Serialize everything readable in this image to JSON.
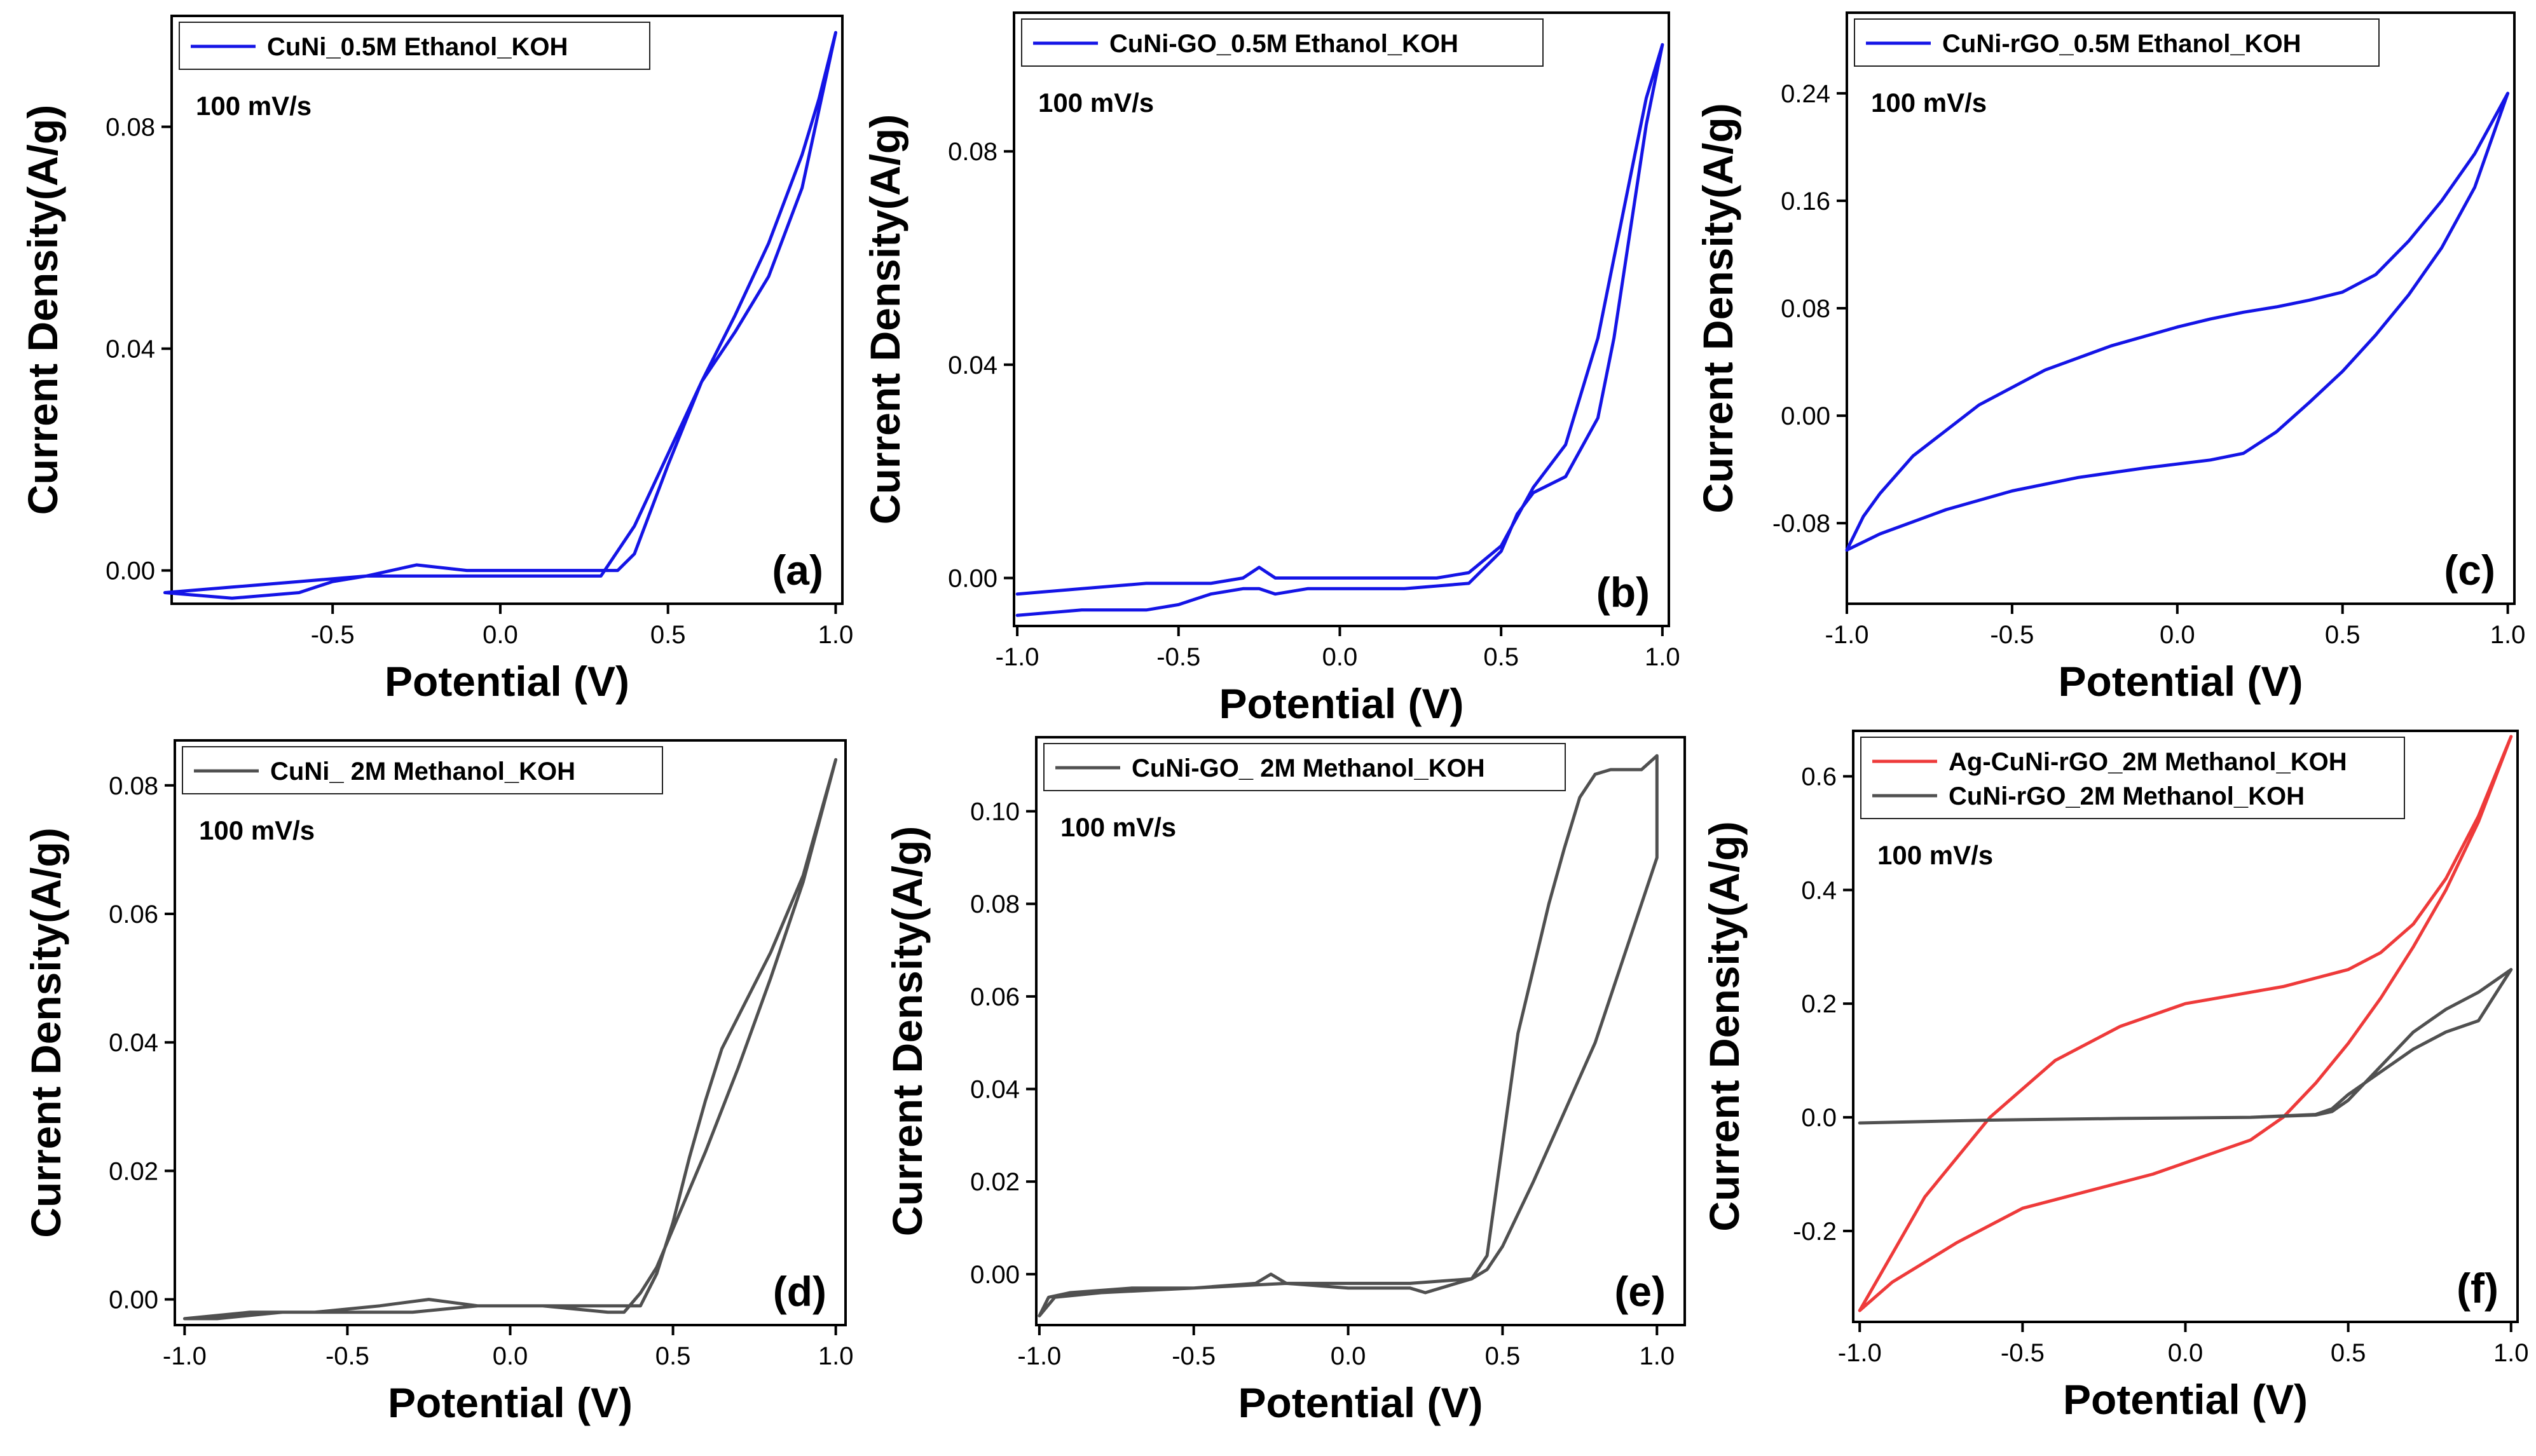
{
  "chart_data": [
    {
      "type": "line",
      "panel_label": "(a)",
      "annotation": "100 mV/s",
      "xlabel": "Potential (V)",
      "ylabel": "Current Density(A/g)",
      "xlim": [
        -0.98,
        1.02
      ],
      "ylim": [
        -0.006,
        0.1
      ],
      "xticks": [
        -0.5,
        0.0,
        0.5,
        1.0
      ],
      "yticks": [
        0.0,
        0.04,
        0.08
      ],
      "tick_decimals": 2,
      "legend_position": "top-left",
      "series": [
        {
          "name": "CuNi_0.5M Ethanol_KOH",
          "color": "#1414e6",
          "x": [
            -1.0,
            -0.8,
            -0.6,
            -0.4,
            -0.25,
            -0.1,
            0.1,
            0.25,
            0.35,
            0.4,
            0.5,
            0.6,
            0.7,
            0.8,
            0.9,
            0.95,
            1.0,
            0.9,
            0.8,
            0.7,
            0.6,
            0.5,
            0.4,
            0.3,
            0.2,
            0.0,
            -0.2,
            -0.4,
            -0.5,
            -0.6,
            -0.8,
            -1.0
          ],
          "y": [
            -0.004,
            -0.003,
            -0.002,
            -0.001,
            0.001,
            0.0,
            0.0,
            0.0,
            0.0,
            0.003,
            0.019,
            0.034,
            0.046,
            0.059,
            0.075,
            0.085,
            0.097,
            0.069,
            0.053,
            0.043,
            0.034,
            0.021,
            0.008,
            -0.001,
            -0.001,
            -0.001,
            -0.001,
            -0.001,
            -0.002,
            -0.004,
            -0.005,
            -0.004
          ]
        }
      ]
    },
    {
      "type": "line",
      "panel_label": "(b)",
      "annotation": "100 mV/s",
      "xlabel": "Potential (V)",
      "ylabel": "Current Density(A/g)",
      "xlim": [
        -1.01,
        1.02
      ],
      "ylim": [
        -0.009,
        0.106
      ],
      "xticks": [
        -1.0,
        -0.5,
        0.0,
        0.5,
        1.0
      ],
      "yticks": [
        0.0,
        0.04,
        0.08
      ],
      "tick_decimals": 2,
      "legend_position": "top-left",
      "series": [
        {
          "name": "CuNi-GO_0.5M Ethanol_KOH",
          "color": "#1414e6",
          "x": [
            -1.0,
            -0.8,
            -0.6,
            -0.5,
            -0.45,
            -0.4,
            -0.3,
            -0.25,
            -0.2,
            -0.1,
            0.0,
            0.2,
            0.4,
            0.5,
            0.55,
            0.6,
            0.7,
            0.8,
            0.85,
            0.9,
            0.95,
            1.0,
            0.95,
            0.9,
            0.85,
            0.8,
            0.75,
            0.7,
            0.6,
            0.5,
            0.4,
            0.3,
            0.2,
            0.0,
            -0.15,
            -0.2,
            -0.25,
            -0.3,
            -0.4,
            -0.5,
            -0.6,
            -0.8,
            -1.0
          ],
          "y": [
            -0.007,
            -0.006,
            -0.006,
            -0.005,
            -0.004,
            -0.003,
            -0.002,
            -0.002,
            -0.003,
            -0.002,
            -0.002,
            -0.002,
            -0.001,
            0.005,
            0.012,
            0.016,
            0.019,
            0.03,
            0.045,
            0.065,
            0.085,
            0.1,
            0.09,
            0.075,
            0.06,
            0.045,
            0.035,
            0.025,
            0.017,
            0.006,
            0.001,
            0.0,
            0.0,
            0.0,
            0.0,
            0.0,
            0.002,
            0.0,
            -0.001,
            -0.001,
            -0.001,
            -0.002,
            -0.003
          ]
        }
      ]
    },
    {
      "type": "line",
      "panel_label": "(c)",
      "annotation": "100 mV/s",
      "xlabel": "Potential (V)",
      "ylabel": "Current Density(A/g)",
      "xlim": [
        -1.0,
        1.02
      ],
      "ylim": [
        -0.14,
        0.3
      ],
      "xticks": [
        -1.0,
        -0.5,
        0.0,
        0.5,
        1.0
      ],
      "yticks": [
        -0.08,
        0.0,
        0.08,
        0.16,
        0.24
      ],
      "tick_decimals": 2,
      "legend_position": "top-left",
      "series": [
        {
          "name": "CuNi-rGO_0.5M Ethanol_KOH",
          "color": "#1414e6",
          "x": [
            -1.0,
            -0.9,
            -0.7,
            -0.5,
            -0.3,
            -0.1,
            0.1,
            0.2,
            0.3,
            0.4,
            0.5,
            0.6,
            0.7,
            0.8,
            0.9,
            1.0,
            0.9,
            0.8,
            0.7,
            0.6,
            0.5,
            0.4,
            0.3,
            0.2,
            0.1,
            0.0,
            -0.2,
            -0.4,
            -0.6,
            -0.8,
            -0.9,
            -0.95,
            -1.0
          ],
          "y": [
            -0.1,
            -0.088,
            -0.07,
            -0.056,
            -0.046,
            -0.039,
            -0.033,
            -0.028,
            -0.012,
            0.01,
            0.033,
            0.06,
            0.09,
            0.125,
            0.17,
            0.24,
            0.195,
            0.16,
            0.13,
            0.105,
            0.092,
            0.086,
            0.081,
            0.077,
            0.072,
            0.066,
            0.052,
            0.034,
            0.008,
            -0.03,
            -0.058,
            -0.075,
            -0.1
          ]
        }
      ]
    },
    {
      "type": "line",
      "panel_label": "(d)",
      "annotation": "100 mV/s",
      "xlabel": "Potential (V)",
      "ylabel": "Current Density(A/g)",
      "xlim": [
        -1.03,
        1.03
      ],
      "ylim": [
        -0.004,
        0.087
      ],
      "xticks": [
        -1.0,
        -0.5,
        0.0,
        0.5,
        1.0
      ],
      "yticks": [
        0.0,
        0.02,
        0.04,
        0.06,
        0.08
      ],
      "tick_decimals": 2,
      "legend_position": "top-left",
      "series": [
        {
          "name": "CuNi_ 2M Methanol_KOH",
          "color": "#505050",
          "x": [
            -1.0,
            -0.8,
            -0.6,
            -0.4,
            -0.25,
            -0.1,
            0.1,
            0.3,
            0.4,
            0.45,
            0.5,
            0.55,
            0.6,
            0.65,
            0.7,
            0.8,
            0.9,
            1.0,
            0.9,
            0.8,
            0.7,
            0.6,
            0.5,
            0.45,
            0.4,
            0.35,
            0.3,
            0.1,
            -0.1,
            -0.3,
            -0.5,
            -0.7,
            -0.9,
            -1.0
          ],
          "y": [
            -0.003,
            -0.002,
            -0.002,
            -0.001,
            0.0,
            -0.001,
            -0.001,
            -0.001,
            -0.001,
            0.004,
            0.012,
            0.022,
            0.031,
            0.039,
            0.044,
            0.054,
            0.066,
            0.084,
            0.065,
            0.05,
            0.036,
            0.023,
            0.011,
            0.005,
            0.001,
            -0.002,
            -0.002,
            -0.001,
            -0.001,
            -0.002,
            -0.002,
            -0.002,
            -0.003,
            -0.003
          ]
        }
      ]
    },
    {
      "type": "line",
      "panel_label": "(e)",
      "annotation": "100 mV/s",
      "xlabel": "Potential (V)",
      "ylabel": "Current Density(A/g)",
      "xlim": [
        -1.01,
        1.09
      ],
      "ylim": [
        -0.011,
        0.116
      ],
      "xticks": [
        -1.0,
        -0.5,
        0.0,
        0.5,
        1.0
      ],
      "yticks": [
        0.0,
        0.02,
        0.04,
        0.06,
        0.08,
        0.1
      ],
      "tick_decimals": 2,
      "legend_position": "top-left",
      "series": [
        {
          "name": "CuNi-GO_ 2M Methanol_KOH",
          "color": "#505050",
          "x": [
            -1.0,
            -0.97,
            -0.9,
            -0.7,
            -0.5,
            -0.3,
            -0.25,
            -0.2,
            0.0,
            0.2,
            0.4,
            0.45,
            0.5,
            0.55,
            0.6,
            0.65,
            0.7,
            0.75,
            0.8,
            0.85,
            0.9,
            0.95,
            1.0,
            1.0,
            0.9,
            0.8,
            0.7,
            0.6,
            0.5,
            0.45,
            0.4,
            0.3,
            0.25,
            0.2,
            0.0,
            -0.2,
            -0.5,
            -0.8,
            -0.95,
            -1.0
          ],
          "y": [
            -0.009,
            -0.005,
            -0.004,
            -0.003,
            -0.003,
            -0.002,
            0.0,
            -0.002,
            -0.002,
            -0.002,
            -0.001,
            0.004,
            0.028,
            0.052,
            0.066,
            0.08,
            0.092,
            0.103,
            0.108,
            0.109,
            0.109,
            0.109,
            0.112,
            0.09,
            0.07,
            0.05,
            0.035,
            0.02,
            0.006,
            0.001,
            -0.001,
            -0.003,
            -0.004,
            -0.003,
            -0.003,
            -0.002,
            -0.003,
            -0.004,
            -0.005,
            -0.009
          ]
        }
      ]
    },
    {
      "type": "line",
      "panel_label": "(f)",
      "annotation": "100 mV/s",
      "xlabel": "Potential (V)",
      "ylabel": "Current Density(A/g)",
      "xlim": [
        -1.02,
        1.02
      ],
      "ylim": [
        -0.36,
        0.68
      ],
      "xticks": [
        -1.0,
        -0.5,
        0.0,
        0.5,
        1.0
      ],
      "yticks": [
        -0.2,
        0.0,
        0.2,
        0.4,
        0.6
      ],
      "tick_decimals": 1,
      "legend_position": "top-left",
      "series": [
        {
          "name": "Ag-CuNi-rGO_2M Methanol_KOH",
          "color": "#ee3a3a",
          "x": [
            -1.0,
            -0.9,
            -0.7,
            -0.5,
            -0.3,
            -0.1,
            0.1,
            0.2,
            0.3,
            0.4,
            0.5,
            0.6,
            0.7,
            0.8,
            0.9,
            1.0,
            0.9,
            0.8,
            0.7,
            0.6,
            0.5,
            0.4,
            0.3,
            0.2,
            0.1,
            0.0,
            -0.2,
            -0.4,
            -0.6,
            -0.8,
            -0.9,
            -0.95,
            -1.0
          ],
          "y": [
            -0.34,
            -0.29,
            -0.22,
            -0.16,
            -0.13,
            -0.1,
            -0.06,
            -0.04,
            0.0,
            0.06,
            0.13,
            0.21,
            0.3,
            0.4,
            0.52,
            0.67,
            0.53,
            0.42,
            0.34,
            0.29,
            0.26,
            0.245,
            0.23,
            0.22,
            0.21,
            0.2,
            0.16,
            0.1,
            0.0,
            -0.14,
            -0.24,
            -0.29,
            -0.34
          ]
        },
        {
          "name": "CuNi-rGO_2M Methanol_KOH",
          "color": "#505050",
          "x": [
            -1.0,
            -0.6,
            -0.2,
            0.2,
            0.4,
            0.45,
            0.5,
            0.6,
            0.7,
            0.8,
            0.9,
            1.0,
            0.9,
            0.8,
            0.7,
            0.6,
            0.5,
            0.45,
            0.4,
            0.2,
            -0.2,
            -0.6,
            -1.0
          ],
          "y": [
            -0.01,
            -0.005,
            -0.002,
            0.0,
            0.005,
            0.015,
            0.04,
            0.08,
            0.12,
            0.15,
            0.17,
            0.26,
            0.22,
            0.19,
            0.15,
            0.09,
            0.03,
            0.01,
            0.004,
            0.0,
            -0.002,
            -0.005,
            -0.01
          ]
        }
      ]
    }
  ]
}
